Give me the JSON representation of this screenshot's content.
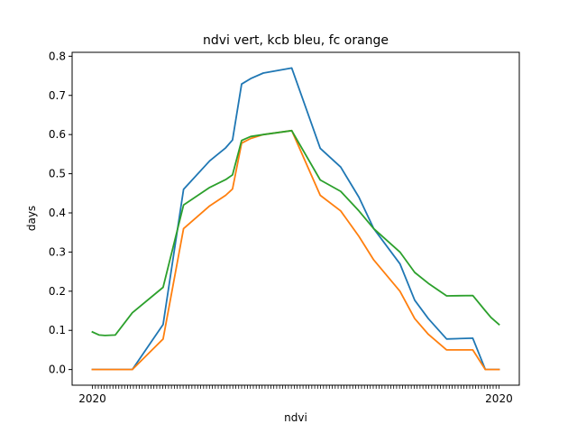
{
  "chart_data": {
    "type": "line",
    "title": "ndvi vert, kcb bleu, fc orange",
    "xlabel": "ndvi",
    "ylabel": "days",
    "ylim": [
      -0.04,
      0.81
    ],
    "yticks": [
      0.0,
      0.1,
      0.2,
      0.3,
      0.4,
      0.5,
      0.6,
      0.7,
      0.8
    ],
    "ytick_labels": [
      "0.0",
      "0.1",
      "0.2",
      "0.3",
      "0.4",
      "0.5",
      "0.6",
      "0.7",
      "0.8"
    ],
    "xtick_count": 140,
    "x_first_label": "2020",
    "x_last_label": "2020",
    "grid": false,
    "legend": "none",
    "x": [
      0,
      6,
      11,
      20,
      35,
      62,
      80,
      103,
      117,
      123,
      131,
      139,
      150,
      175,
      200,
      218,
      234,
      247,
      270,
      283,
      295,
      311,
      334,
      345,
      350,
      357
    ],
    "series": [
      {
        "color": "#1f77b4",
        "values": [
          0.0,
          0.0,
          0.0,
          0.0,
          0.0,
          0.115,
          0.46,
          0.533,
          0.566,
          0.586,
          0.729,
          0.743,
          0.757,
          0.77,
          0.565,
          0.517,
          0.44,
          0.36,
          0.27,
          0.177,
          0.13,
          0.078,
          0.08,
          0.0,
          0.0,
          0.0
        ]
      },
      {
        "color": "#ff7f0e",
        "values": [
          0.0,
          0.0,
          0.0,
          0.0,
          0.0,
          0.078,
          0.36,
          0.418,
          0.445,
          0.461,
          0.578,
          0.59,
          0.6,
          0.61,
          0.445,
          0.405,
          0.34,
          0.28,
          0.2,
          0.13,
          0.09,
          0.05,
          0.05,
          0.0,
          0.0,
          0.0
        ]
      },
      {
        "color": "#2ca02c",
        "values": [
          0.096,
          0.088,
          0.087,
          0.088,
          0.145,
          0.21,
          0.42,
          0.465,
          0.485,
          0.497,
          0.585,
          0.595,
          0.6,
          0.61,
          0.484,
          0.455,
          0.405,
          0.36,
          0.3,
          0.248,
          0.22,
          0.188,
          0.189,
          0.15,
          0.133,
          0.115
        ]
      }
    ]
  }
}
